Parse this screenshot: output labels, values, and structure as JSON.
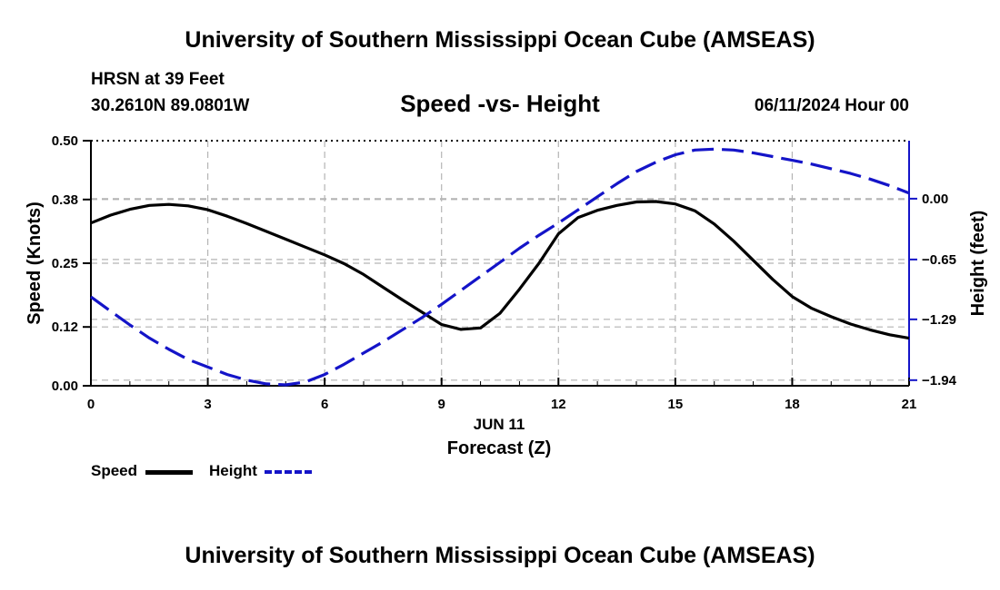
{
  "header": {
    "title": "University of Southern Mississippi Ocean Cube (AMSEAS)",
    "station": "HRSN at 39 Feet",
    "coordinates": "30.2610N  89.0801W",
    "subtitle": "Speed -vs- Height",
    "datetime": "06/11/2024 Hour 00"
  },
  "footer": {
    "title": "University of Southern Mississippi Ocean Cube (AMSEAS)"
  },
  "legend": {
    "speed": "Speed",
    "height": "Height"
  },
  "chart_data": {
    "type": "line",
    "title": "Speed -vs- Height",
    "xlabel": "Forecast (Z)",
    "xlabel_date": "JUN 11",
    "ylabel": "Speed (Knots)",
    "y2label": "Height (feet)",
    "xlim": [
      0,
      21
    ],
    "ylim": [
      0,
      0.5
    ],
    "y2lim": [
      -2.0,
      0.62
    ],
    "x_ticks": [
      "0",
      "3",
      "6",
      "9",
      "12",
      "15",
      "18",
      "21"
    ],
    "y_ticks": [
      "0.00",
      "0.12",
      "0.25",
      "0.38",
      "0.50"
    ],
    "y2_ticks": [
      "0.00",
      "−0.65",
      "−1.29",
      "−1.94"
    ],
    "grid": true,
    "legend_position": "bottom-left",
    "colors": {
      "speed": "#000000",
      "height": "#1414c8",
      "grid": "#b4b4b4"
    },
    "series": [
      {
        "name": "Speed",
        "axis": "left",
        "style": "solid",
        "x": [
          0,
          0.5,
          1,
          1.5,
          2,
          2.5,
          3,
          3.5,
          4,
          4.5,
          5,
          5.5,
          6,
          6.5,
          7,
          7.5,
          8,
          8.5,
          9,
          9.5,
          10,
          10.5,
          11,
          11.5,
          12,
          12.5,
          13,
          13.5,
          14,
          14.5,
          15,
          15.5,
          16,
          16.5,
          17,
          17.5,
          18,
          18.5,
          19,
          19.5,
          20,
          20.5,
          21
        ],
        "values": [
          0.332,
          0.348,
          0.36,
          0.368,
          0.37,
          0.367,
          0.359,
          0.346,
          0.331,
          0.315,
          0.299,
          0.283,
          0.267,
          0.249,
          0.227,
          0.201,
          0.175,
          0.15,
          0.125,
          0.115,
          0.118,
          0.148,
          0.197,
          0.25,
          0.31,
          0.343,
          0.358,
          0.368,
          0.375,
          0.376,
          0.371,
          0.357,
          0.33,
          0.295,
          0.256,
          0.217,
          0.182,
          0.158,
          0.141,
          0.126,
          0.114,
          0.104,
          0.097
        ]
      },
      {
        "name": "Height",
        "axis": "right",
        "style": "dashed",
        "x": [
          0,
          0.5,
          1,
          1.5,
          2,
          2.5,
          3,
          3.5,
          4,
          4.5,
          5,
          5.5,
          6,
          6.5,
          7,
          7.5,
          8,
          8.5,
          9,
          9.5,
          10,
          10.5,
          11,
          11.5,
          12,
          12.5,
          13,
          13.5,
          14,
          14.5,
          15,
          15.5,
          16,
          16.5,
          17,
          17.5,
          18,
          18.5,
          19,
          19.5,
          20,
          20.5,
          21
        ],
        "values": [
          -1.05,
          -1.2,
          -1.35,
          -1.49,
          -1.61,
          -1.72,
          -1.8,
          -1.88,
          -1.94,
          -1.98,
          -1.99,
          -1.96,
          -1.88,
          -1.77,
          -1.65,
          -1.53,
          -1.4,
          -1.27,
          -1.13,
          -0.98,
          -0.83,
          -0.68,
          -0.53,
          -0.39,
          -0.26,
          -0.12,
          0.02,
          0.16,
          0.29,
          0.39,
          0.47,
          0.52,
          0.53,
          0.52,
          0.49,
          0.45,
          0.41,
          0.37,
          0.32,
          0.27,
          0.21,
          0.14,
          0.06
        ]
      }
    ]
  }
}
